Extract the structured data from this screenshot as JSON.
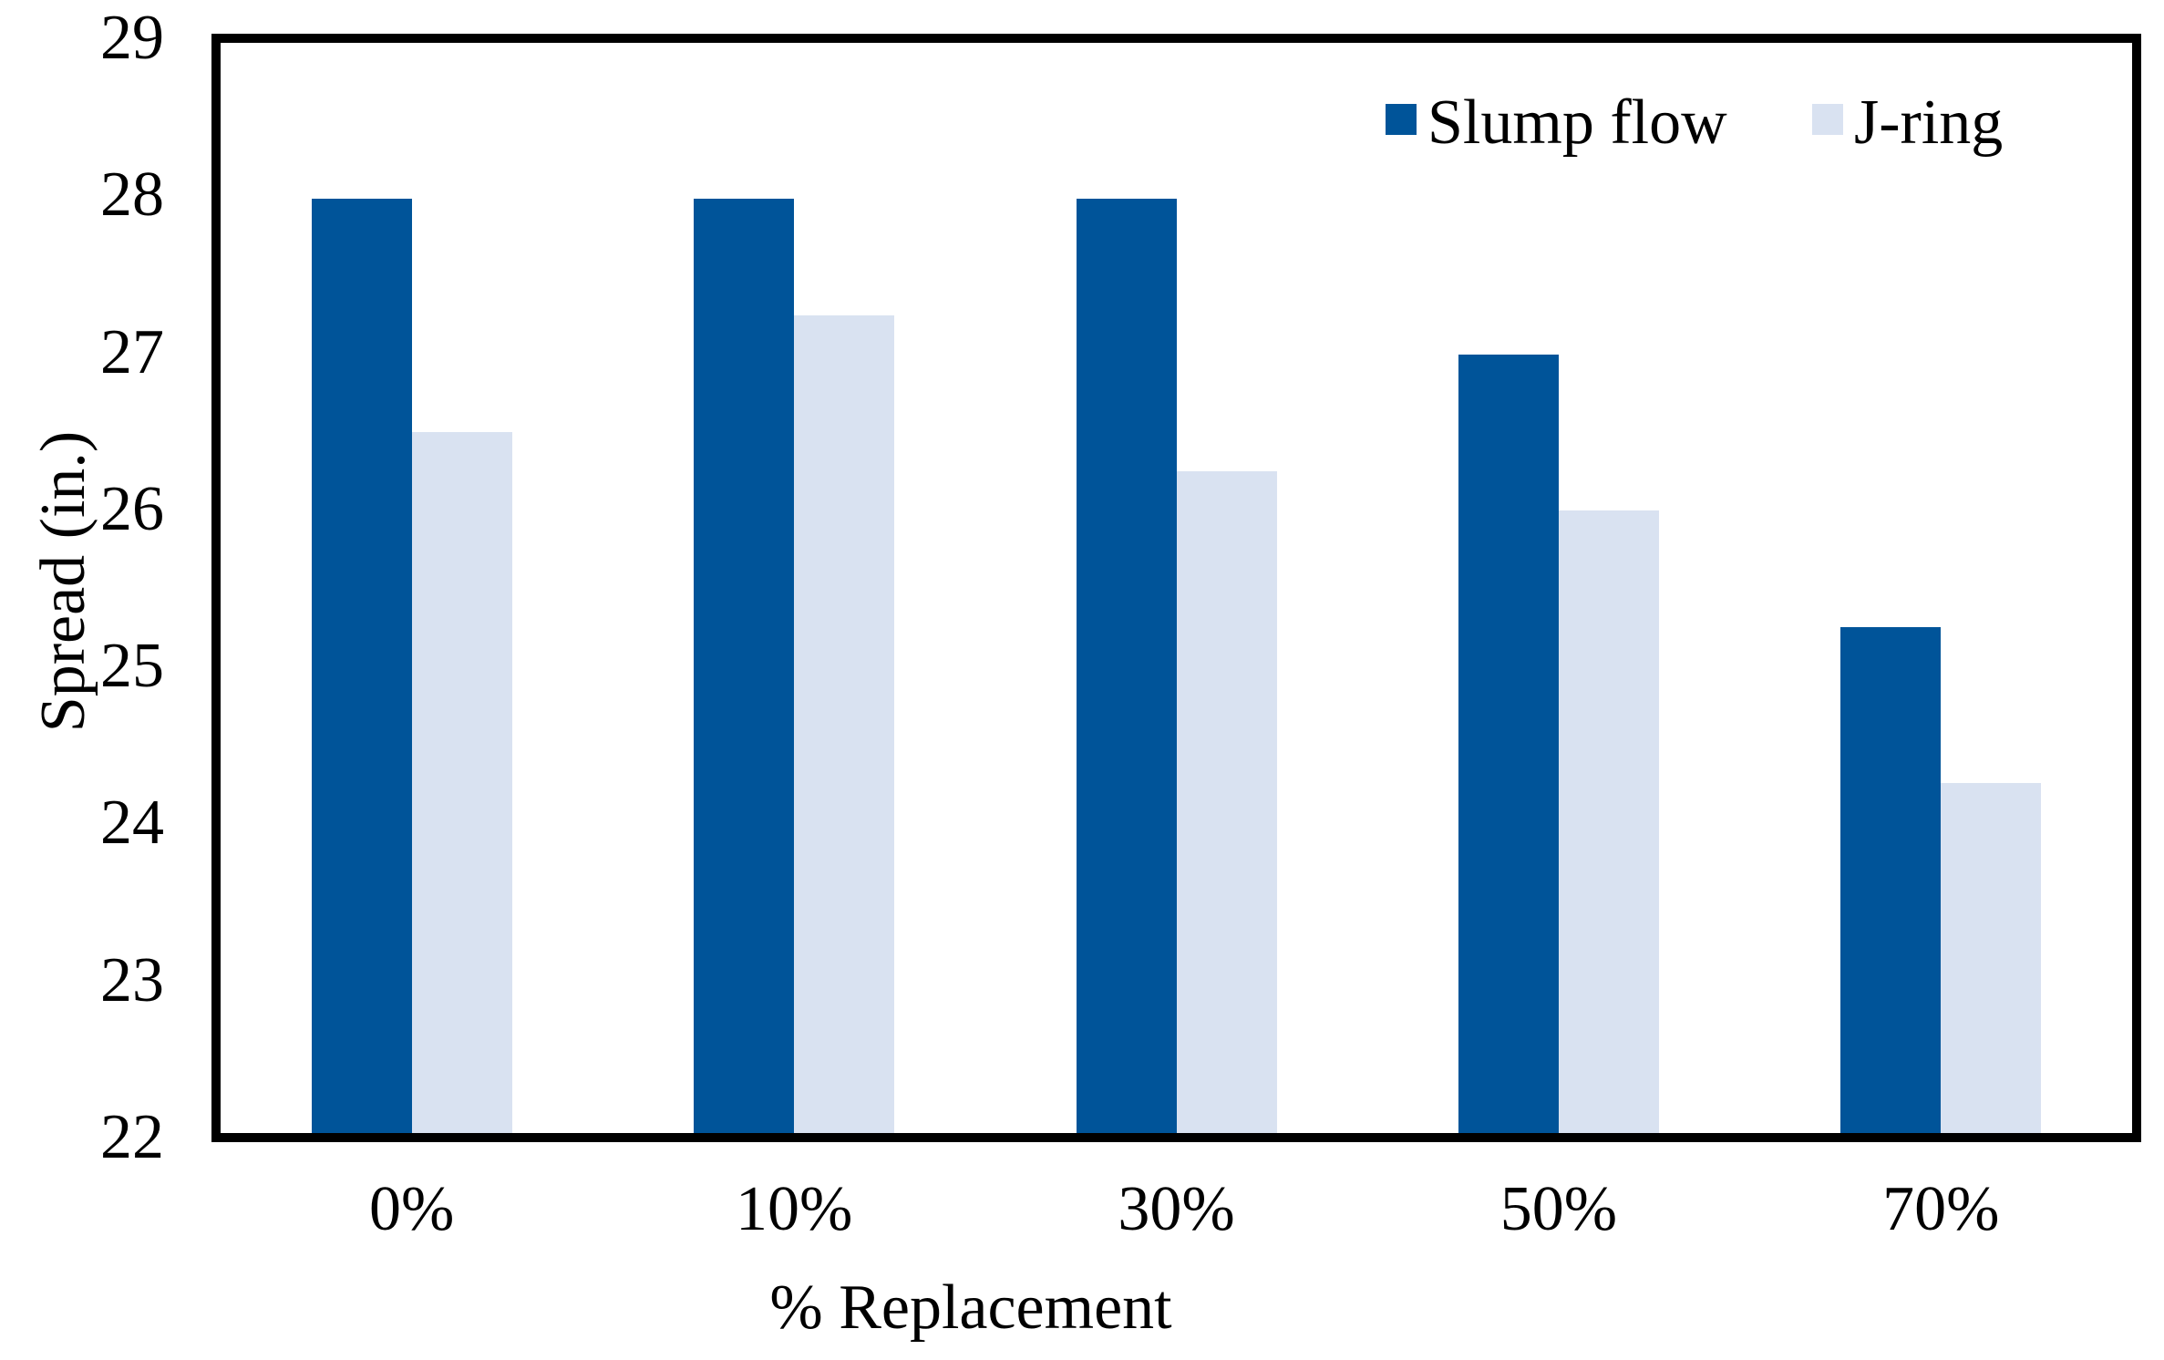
{
  "chart_data": {
    "type": "bar",
    "title": "",
    "categories": [
      "0%",
      "10%",
      "30%",
      "50%",
      "70%"
    ],
    "series": [
      {
        "name": "Slump flow",
        "color": "#005499",
        "values": [
          28,
          28,
          28,
          27,
          25.25
        ]
      },
      {
        "name": "J-ring",
        "color": "#D9E2F1",
        "values": [
          26.5,
          27.25,
          26.25,
          26,
          24.25
        ]
      }
    ],
    "xlabel": "% Replacement",
    "ylabel": "Spread (in.)",
    "ylim": [
      22,
      29
    ],
    "yticks": [
      29,
      28,
      27,
      26,
      25,
      24,
      23,
      22
    ],
    "grid": false,
    "legend_position": "top-right-inside",
    "plot_border_color": "#000000",
    "text_color": "#000000",
    "background_color": "#FFFFFF"
  }
}
